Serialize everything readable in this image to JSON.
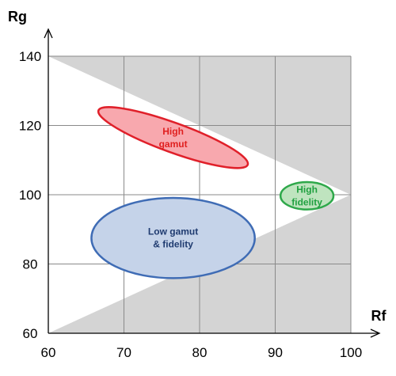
{
  "chart_data": {
    "type": "diagram",
    "xlabel": "Rf",
    "ylabel": "Rg",
    "xlim": [
      60,
      100
    ],
    "ylim": [
      60,
      140
    ],
    "xticks": [
      "60",
      "70",
      "80",
      "90",
      "100"
    ],
    "yticks": [
      "60",
      "80",
      "100",
      "120",
      "140"
    ],
    "grid": true,
    "shaded_regions": [
      {
        "points": [
          [
            60,
            140
          ],
          [
            100,
            140
          ],
          [
            100,
            100
          ]
        ]
      },
      {
        "points": [
          [
            60,
            60
          ],
          [
            100,
            60
          ],
          [
            100,
            100
          ]
        ]
      }
    ],
    "regions": [
      {
        "lines": [
          "High",
          "gamut"
        ],
        "center": [
          76.5,
          116.5
        ],
        "semi_axes_data": [
          10.5,
          8.5
        ],
        "text_color": "#e02020",
        "fill": "#f8a8ae",
        "stroke": "#e0202a"
      },
      {
        "lines": [
          "Low gamut",
          "& fidelity"
        ],
        "center": [
          76.5,
          87.5
        ],
        "semi_axes_data": [
          10.8,
          12.2
        ],
        "text_color": "#1f3b70",
        "fill": "#c5d3e9",
        "stroke": "#3f6cb5"
      },
      {
        "lines": [
          "High",
          "fidelity"
        ],
        "center": [
          94.2,
          99.7
        ],
        "semi_axes_data": [
          3.5,
          4.4
        ],
        "text_color": "#20a040",
        "fill": "#bfe4bf",
        "stroke": "#2ea84a"
      }
    ]
  }
}
